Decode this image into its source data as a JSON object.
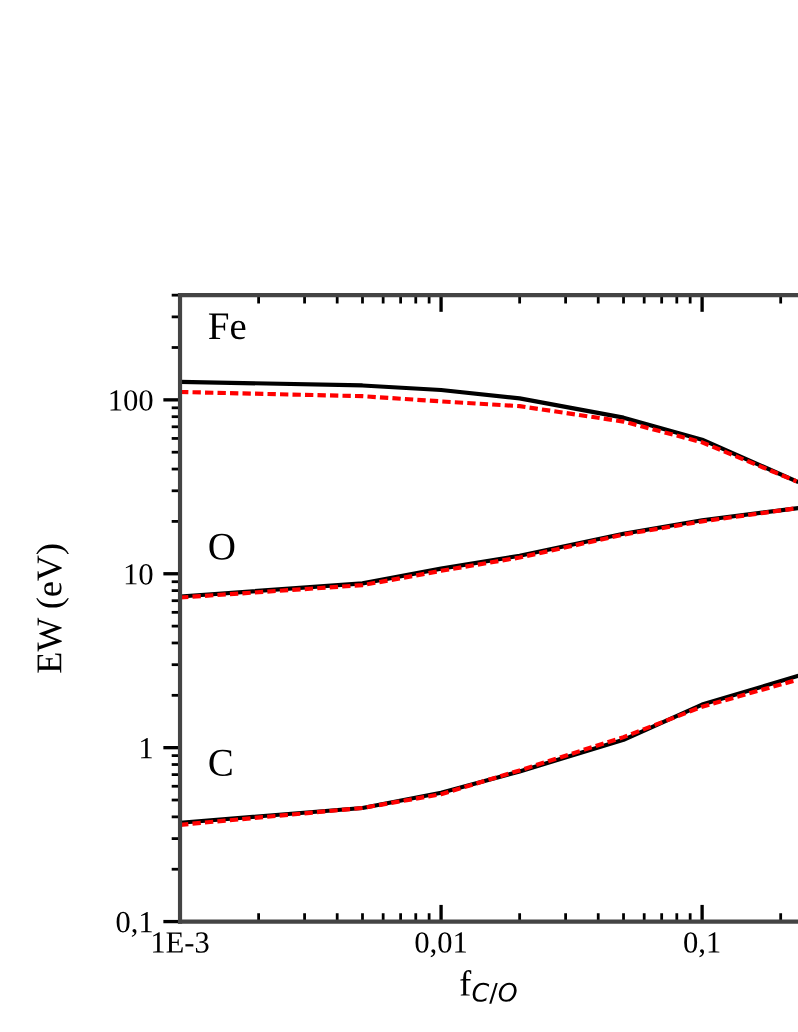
{
  "chart_data": {
    "type": "line",
    "xlabel": "f$_{C/O}$",
    "ylabel": "EW (eV)",
    "x": [
      0.001,
      0.005,
      0.01,
      0.02,
      0.05,
      0.1,
      0.23
    ],
    "series": [
      {
        "color": "#000000",
        "line_style": "solid",
        "values": [
          127,
          121,
          114,
          102,
          79,
          59,
          34
        ]
      },
      {
        "color": "#ff0000",
        "line_style": "dashed",
        "values": [
          111,
          105,
          98,
          92,
          75,
          57,
          34
        ]
      },
      {
        "color": "#000000",
        "line_style": "solid",
        "values": [
          7.4,
          8.8,
          10.7,
          12.7,
          17,
          20.3,
          23.8
        ]
      },
      {
        "color": "#ff0000",
        "line_style": "dashed",
        "values": [
          7.3,
          8.6,
          10.4,
          12.4,
          16.8,
          20,
          23.8
        ]
      },
      {
        "color": "#000000",
        "line_style": "solid",
        "values": [
          0.37,
          0.45,
          0.55,
          0.73,
          1.11,
          1.77,
          2.57
        ]
      },
      {
        "color": "#ff0000",
        "line_style": "dashed",
        "values": [
          0.36,
          0.45,
          0.54,
          0.74,
          1.15,
          1.72,
          2.45
        ]
      }
    ],
    "annotations": [
      "Fe",
      "O",
      "C"
    ],
    "log": "xy",
    "xlim": [
      0.001,
      0.233
    ],
    "ylim": [
      0.1,
      400
    ],
    "xticks": [
      {
        "value": 0.001,
        "label": "1E-3"
      },
      {
        "value": 0.01,
        "label": "0,01"
      },
      {
        "value": 0.1,
        "label": "0,1"
      }
    ],
    "yticks": [
      {
        "value": 0.1,
        "label": "0,1"
      },
      1,
      10,
      100
    ],
    "grid": false,
    "legend": false,
    "marker": "none"
  }
}
